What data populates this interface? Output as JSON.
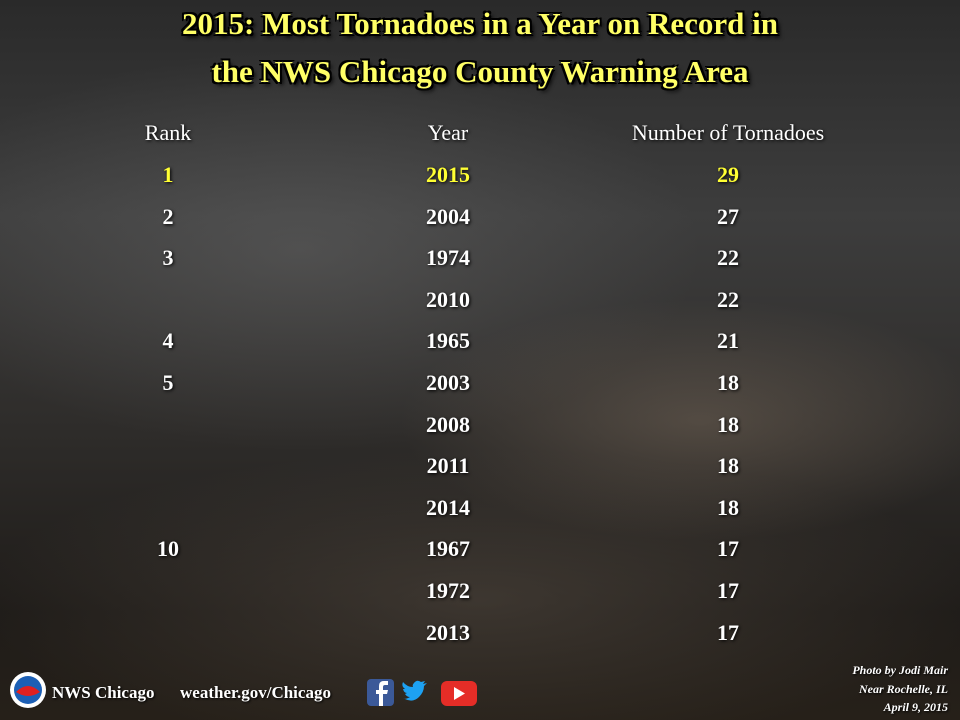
{
  "title": [
    "2015: Most Tornadoes in a Year on Record in",
    "the NWS Chicago County Warning Area"
  ],
  "table": {
    "header": [
      "Rank",
      "Year",
      "Number of Tornadoes"
    ],
    "rows": [
      [
        1,
        2015,
        29
      ],
      [
        2,
        2004,
        27
      ],
      [
        3,
        1974,
        22
      ],
      [
        null,
        2010,
        22
      ],
      [
        4,
        1965,
        21
      ],
      [
        5,
        2003,
        18
      ],
      [
        null,
        2008,
        18
      ],
      [
        null,
        2011,
        18
      ],
      [
        null,
        2014,
        18
      ],
      [
        10,
        1967,
        17
      ],
      [
        null,
        1972,
        17
      ],
      [
        null,
        2013,
        17
      ]
    ]
  },
  "footer": {
    "office": "NWS Chicago",
    "website": "weather.gov/Chicago"
  },
  "credit": [
    "Photo by Jodi Mair",
    "Near Rochelle, IL",
    "April 9, 2015"
  ]
}
